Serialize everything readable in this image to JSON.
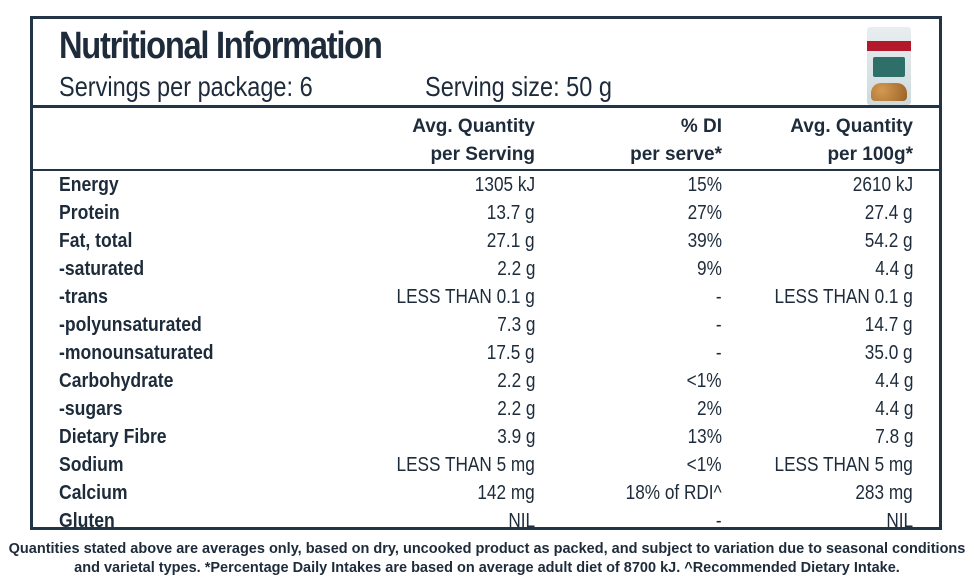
{
  "title": "Nutritional Information",
  "servings_per_package": "Servings per package: 6",
  "serving_size": "Serving size: 50 g",
  "product_image_icon": "almond-flour-package",
  "columns": {
    "qty_serving_l1": "Avg. Quantity",
    "qty_serving_l2": "per Serving",
    "di_l1": "% DI",
    "di_l2": "per serve*",
    "qty_100_l1": "Avg. Quantity",
    "qty_100_l2": "per 100g*"
  },
  "rows": [
    {
      "name": "Energy",
      "per_serving": "1305 kJ",
      "di": "15%",
      "per_100g": "2610 kJ"
    },
    {
      "name": "Protein",
      "per_serving": "13.7 g",
      "di": "27%",
      "per_100g": "27.4 g"
    },
    {
      "name": "Fat, total",
      "per_serving": "27.1 g",
      "di": "39%",
      "per_100g": "54.2 g"
    },
    {
      "name": "-saturated",
      "per_serving": "2.2 g",
      "di": "9%",
      "per_100g": "4.4 g"
    },
    {
      "name": "-trans",
      "per_serving": "LESS THAN 0.1 g",
      "di": "-",
      "per_100g": "LESS THAN 0.1 g"
    },
    {
      "name": "-polyunsaturated",
      "per_serving": "7.3 g",
      "di": "-",
      "per_100g": "14.7 g"
    },
    {
      "name": "-monounsaturated",
      "per_serving": "17.5 g",
      "di": "-",
      "per_100g": "35.0 g"
    },
    {
      "name": "Carbohydrate",
      "per_serving": "2.2 g",
      "di": "<1%",
      "per_100g": "4.4 g"
    },
    {
      "name": "-sugars",
      "per_serving": "2.2 g",
      "di": "2%",
      "per_100g": "4.4 g"
    },
    {
      "name": "Dietary Fibre",
      "per_serving": "3.9 g",
      "di": "13%",
      "per_100g": "7.8 g"
    },
    {
      "name": "Sodium",
      "per_serving": "LESS THAN 5 mg",
      "di": "<1%",
      "per_100g": "LESS THAN 5 mg"
    },
    {
      "name": "Calcium",
      "per_serving": "142 mg",
      "di": "18% of RDI^",
      "per_100g": "283 mg"
    },
    {
      "name": "Gluten",
      "per_serving": "NIL",
      "di": "-",
      "per_100g": "NIL"
    }
  ],
  "footnote_l1": "Quantities stated above are averages only, based on dry, uncooked product as packed, and subject to variation due to seasonal conditions",
  "footnote_l2": "and varietal types. *Percentage Daily Intakes are based on average adult diet of 8700 kJ. ^Recommended Dietary Intake."
}
